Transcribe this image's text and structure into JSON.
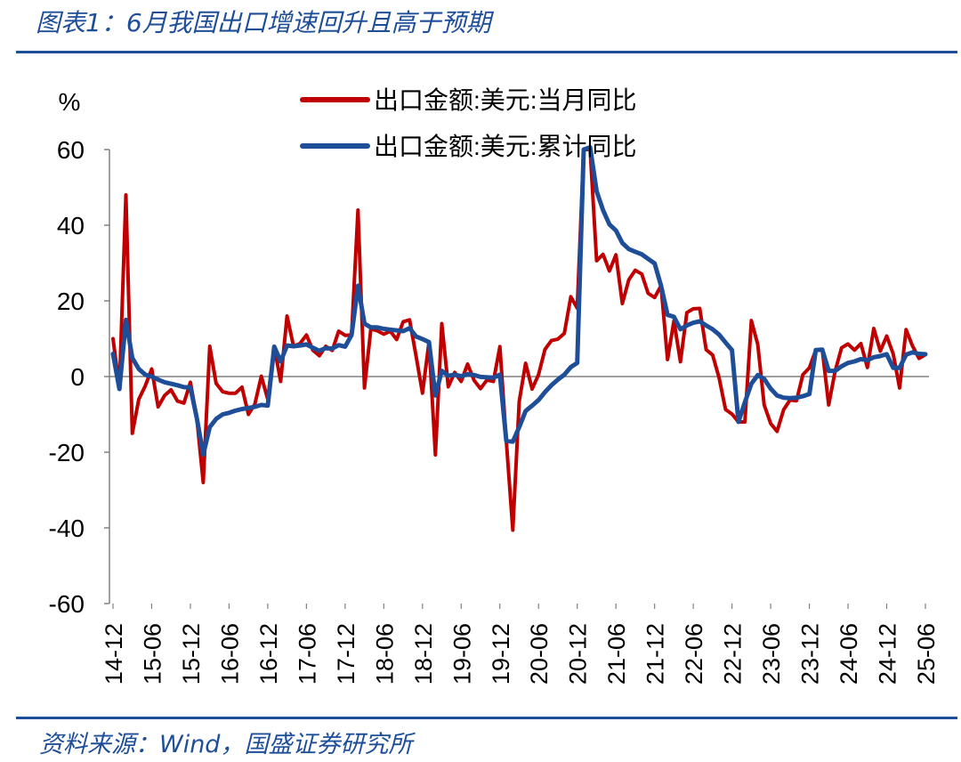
{
  "header": {
    "title": "图表1：6月我国出口增速回升且高于预期"
  },
  "footer": {
    "source": "资料来源：Wind，国盛证券研究所"
  },
  "chart_data": {
    "type": "line",
    "title": "图表1：6月我国出口增速回升且高于预期",
    "ylabel": "%",
    "ylim": [
      -60,
      60
    ],
    "yticks": [
      60,
      40,
      20,
      0,
      -20,
      -40,
      -60
    ],
    "ytick_labels": [
      "60",
      "40",
      "20",
      "0",
      "-20",
      "-40",
      "-60"
    ],
    "xlim": [
      "2014-12",
      "2025-06"
    ],
    "xtick_labels": [
      "14-12",
      "15-06",
      "15-12",
      "16-06",
      "16-12",
      "17-06",
      "17-12",
      "18-06",
      "18-12",
      "19-06",
      "19-12",
      "20-06",
      "20-12",
      "21-06",
      "21-12",
      "22-06",
      "22-12",
      "23-06",
      "23-12",
      "24-06",
      "24-12",
      "25-06"
    ],
    "grid": false,
    "legend_position": "top-center",
    "series": [
      {
        "name": "出口金额:美元:当月同比",
        "color": "#c00000",
        "points": [
          [
            "2014-12",
            10
          ],
          [
            "2015-01",
            -3
          ],
          [
            "2015-02",
            48
          ],
          [
            "2015-03",
            -15
          ],
          [
            "2015-04",
            -6
          ],
          [
            "2015-05",
            -2.5
          ],
          [
            "2015-06",
            2
          ],
          [
            "2015-07",
            -8
          ],
          [
            "2015-08",
            -5
          ],
          [
            "2015-09",
            -3.5
          ],
          [
            "2015-10",
            -6.5
          ],
          [
            "2015-11",
            -7
          ],
          [
            "2015-12",
            -1.5
          ],
          [
            "2016-01",
            -11
          ],
          [
            "2016-02",
            -28
          ],
          [
            "2016-03",
            8
          ],
          [
            "2016-04",
            -1.8
          ],
          [
            "2016-05",
            -4
          ],
          [
            "2016-06",
            -4.4
          ],
          [
            "2016-07",
            -4.4
          ],
          [
            "2016-08",
            -2.8
          ],
          [
            "2016-09",
            -10
          ],
          [
            "2016-10",
            -7.3
          ],
          [
            "2016-11",
            0.1
          ],
          [
            "2016-12",
            -6
          ],
          [
            "2017-01",
            7.9
          ],
          [
            "2017-02",
            -1.3
          ],
          [
            "2017-03",
            16
          ],
          [
            "2017-04",
            8
          ],
          [
            "2017-05",
            8.7
          ],
          [
            "2017-06",
            11
          ],
          [
            "2017-07",
            7
          ],
          [
            "2017-08",
            5.5
          ],
          [
            "2017-09",
            8
          ],
          [
            "2017-10",
            6.9
          ],
          [
            "2017-11",
            12
          ],
          [
            "2017-12",
            10.9
          ],
          [
            "2018-01",
            11
          ],
          [
            "2018-02",
            44
          ],
          [
            "2018-03",
            -3
          ],
          [
            "2018-04",
            12.6
          ],
          [
            "2018-05",
            12.1
          ],
          [
            "2018-06",
            11.2
          ],
          [
            "2018-07",
            12
          ],
          [
            "2018-08",
            9.8
          ],
          [
            "2018-09",
            14.5
          ],
          [
            "2018-10",
            15
          ],
          [
            "2018-11",
            5.4
          ],
          [
            "2018-12",
            -4.4
          ],
          [
            "2019-01",
            9.1
          ],
          [
            "2019-02",
            -20.7
          ],
          [
            "2019-03",
            14
          ],
          [
            "2019-04",
            -2.7
          ],
          [
            "2019-05",
            1.1
          ],
          [
            "2019-06",
            -1.3
          ],
          [
            "2019-07",
            3.3
          ],
          [
            "2019-08",
            -1
          ],
          [
            "2019-09",
            -3.2
          ],
          [
            "2019-10",
            -0.9
          ],
          [
            "2019-11",
            -1.3
          ],
          [
            "2019-12",
            7.9
          ],
          [
            "2020-01",
            -17
          ],
          [
            "2020-02",
            -40.6
          ],
          [
            "2020-03",
            -6.6
          ],
          [
            "2020-04",
            3.5
          ],
          [
            "2020-05",
            -3.3
          ],
          [
            "2020-06",
            0.5
          ],
          [
            "2020-07",
            7.2
          ],
          [
            "2020-08",
            9.5
          ],
          [
            "2020-09",
            9.9
          ],
          [
            "2020-10",
            11.4
          ],
          [
            "2020-11",
            21.1
          ],
          [
            "2020-12",
            18.1
          ],
          [
            "2021-01",
            60
          ],
          [
            "2021-02",
            60
          ],
          [
            "2021-03",
            30.6
          ],
          [
            "2021-04",
            32.3
          ],
          [
            "2021-05",
            27.9
          ],
          [
            "2021-06",
            32.2
          ],
          [
            "2021-07",
            19.3
          ],
          [
            "2021-08",
            25.6
          ],
          [
            "2021-09",
            28.1
          ],
          [
            "2021-10",
            27.1
          ],
          [
            "2021-11",
            22
          ],
          [
            "2021-12",
            20.9
          ],
          [
            "2022-01",
            24
          ],
          [
            "2022-02",
            4.5
          ],
          [
            "2022-03",
            14.7
          ],
          [
            "2022-04",
            3.9
          ],
          [
            "2022-05",
            16.9
          ],
          [
            "2022-06",
            17.9
          ],
          [
            "2022-07",
            18
          ],
          [
            "2022-08",
            7.1
          ],
          [
            "2022-09",
            5.7
          ],
          [
            "2022-10",
            -0.3
          ],
          [
            "2022-11",
            -8.7
          ],
          [
            "2022-12",
            -9.9
          ],
          [
            "2023-01",
            -12
          ],
          [
            "2023-02",
            -12
          ],
          [
            "2023-03",
            14.8
          ],
          [
            "2023-04",
            8.5
          ],
          [
            "2023-05",
            -7.5
          ],
          [
            "2023-06",
            -12.4
          ],
          [
            "2023-07",
            -14.5
          ],
          [
            "2023-08",
            -8.8
          ],
          [
            "2023-09",
            -6.2
          ],
          [
            "2023-10",
            -6.4
          ],
          [
            "2023-11",
            0.5
          ],
          [
            "2023-12",
            2.3
          ],
          [
            "2024-01",
            7
          ],
          [
            "2024-02",
            7.1
          ],
          [
            "2024-03",
            -7.5
          ],
          [
            "2024-04",
            1.5
          ],
          [
            "2024-05",
            7.6
          ],
          [
            "2024-06",
            8.6
          ],
          [
            "2024-07",
            7
          ],
          [
            "2024-08",
            8.7
          ],
          [
            "2024-09",
            2.4
          ],
          [
            "2024-10",
            12.7
          ],
          [
            "2024-11",
            6.7
          ],
          [
            "2024-12",
            10.7
          ],
          [
            "2025-01",
            6
          ],
          [
            "2025-02",
            -3
          ],
          [
            "2025-03",
            12.4
          ],
          [
            "2025-04",
            8.1
          ],
          [
            "2025-05",
            4.8
          ],
          [
            "2025-06",
            5.8
          ]
        ]
      },
      {
        "name": "出口金额:美元:累计同比",
        "color": "#1f4e99",
        "points": [
          [
            "2014-12",
            6
          ],
          [
            "2015-01",
            -3.3
          ],
          [
            "2015-02",
            15
          ],
          [
            "2015-03",
            4.9
          ],
          [
            "2015-04",
            2
          ],
          [
            "2015-05",
            0.5
          ],
          [
            "2015-06",
            0
          ],
          [
            "2015-07",
            -0.8
          ],
          [
            "2015-08",
            -1.5
          ],
          [
            "2015-09",
            -1.9
          ],
          [
            "2015-10",
            -2.3
          ],
          [
            "2015-11",
            -2.8
          ],
          [
            "2015-12",
            -2.9
          ],
          [
            "2016-01",
            -11
          ],
          [
            "2016-02",
            -20.6
          ],
          [
            "2016-03",
            -13.4
          ],
          [
            "2016-04",
            -11.2
          ],
          [
            "2016-05",
            -10
          ],
          [
            "2016-06",
            -9.6
          ],
          [
            "2016-07",
            -9
          ],
          [
            "2016-08",
            -8.6
          ],
          [
            "2016-09",
            -8.3
          ],
          [
            "2016-10",
            -8
          ],
          [
            "2016-11",
            -7.5
          ],
          [
            "2016-12",
            -7.7
          ],
          [
            "2017-01",
            7.9
          ],
          [
            "2017-02",
            4
          ],
          [
            "2017-03",
            8.2
          ],
          [
            "2017-04",
            8
          ],
          [
            "2017-05",
            8.2
          ],
          [
            "2017-06",
            8.5
          ],
          [
            "2017-07",
            7.6
          ],
          [
            "2017-08",
            6.8
          ],
          [
            "2017-09",
            7.5
          ],
          [
            "2017-10",
            7.4
          ],
          [
            "2017-11",
            8.3
          ],
          [
            "2017-12",
            7.9
          ],
          [
            "2018-01",
            11
          ],
          [
            "2018-02",
            24
          ],
          [
            "2018-03",
            14
          ],
          [
            "2018-04",
            13
          ],
          [
            "2018-05",
            13
          ],
          [
            "2018-06",
            12.6
          ],
          [
            "2018-07",
            12.4
          ],
          [
            "2018-08",
            12.2
          ],
          [
            "2018-09",
            12
          ],
          [
            "2018-10",
            12.8
          ],
          [
            "2018-11",
            10.6
          ],
          [
            "2018-12",
            9.9
          ],
          [
            "2019-01",
            9.1
          ],
          [
            "2019-02",
            -5
          ],
          [
            "2019-03",
            1.5
          ],
          [
            "2019-04",
            0.2
          ],
          [
            "2019-05",
            0.5
          ],
          [
            "2019-06",
            0.1
          ],
          [
            "2019-07",
            0.6
          ],
          [
            "2019-08",
            0.4
          ],
          [
            "2019-09",
            -0.1
          ],
          [
            "2019-10",
            -0.2
          ],
          [
            "2019-11",
            -0.3
          ],
          [
            "2019-12",
            0.5
          ],
          [
            "2020-01",
            -17
          ],
          [
            "2020-02",
            -17.2
          ],
          [
            "2020-03",
            -13.4
          ],
          [
            "2020-04",
            -9.1
          ],
          [
            "2020-05",
            -7.7
          ],
          [
            "2020-06",
            -6.2
          ],
          [
            "2020-07",
            -4.1
          ],
          [
            "2020-08",
            -2.3
          ],
          [
            "2020-09",
            -0.8
          ],
          [
            "2020-10",
            0.5
          ],
          [
            "2020-11",
            2.5
          ],
          [
            "2020-12",
            3.6
          ],
          [
            "2021-01",
            60
          ],
          [
            "2021-02",
            60.6
          ],
          [
            "2021-03",
            49
          ],
          [
            "2021-04",
            44
          ],
          [
            "2021-05",
            40.2
          ],
          [
            "2021-06",
            38.6
          ],
          [
            "2021-07",
            35.3
          ],
          [
            "2021-08",
            33.7
          ],
          [
            "2021-09",
            33
          ],
          [
            "2021-10",
            32.3
          ],
          [
            "2021-11",
            31.1
          ],
          [
            "2021-12",
            29.9
          ],
          [
            "2022-01",
            24
          ],
          [
            "2022-02",
            16.3
          ],
          [
            "2022-03",
            15.8
          ],
          [
            "2022-04",
            12.5
          ],
          [
            "2022-05",
            13.5
          ],
          [
            "2022-06",
            14.2
          ],
          [
            "2022-07",
            14.6
          ],
          [
            "2022-08",
            13.5
          ],
          [
            "2022-09",
            12.5
          ],
          [
            "2022-10",
            11.1
          ],
          [
            "2022-11",
            9
          ],
          [
            "2022-12",
            7
          ],
          [
            "2023-01",
            -12
          ],
          [
            "2023-02",
            -6.8
          ],
          [
            "2023-03",
            -1.9
          ],
          [
            "2023-04",
            0.4
          ],
          [
            "2023-05",
            -0.6
          ],
          [
            "2023-06",
            -3.2
          ],
          [
            "2023-07",
            -5
          ],
          [
            "2023-08",
            -5.6
          ],
          [
            "2023-09",
            -5.7
          ],
          [
            "2023-10",
            -5.6
          ],
          [
            "2023-11",
            -5.2
          ],
          [
            "2023-12",
            -4.6
          ],
          [
            "2024-01",
            7
          ],
          [
            "2024-02",
            7.1
          ],
          [
            "2024-03",
            1.5
          ],
          [
            "2024-04",
            1.5
          ],
          [
            "2024-05",
            2.7
          ],
          [
            "2024-06",
            3.6
          ],
          [
            "2024-07",
            4
          ],
          [
            "2024-08",
            4.6
          ],
          [
            "2024-09",
            4.3
          ],
          [
            "2024-10",
            5.1
          ],
          [
            "2024-11",
            5.4
          ],
          [
            "2024-12",
            5.9
          ],
          [
            "2025-01",
            2.3
          ],
          [
            "2025-02",
            2.3
          ],
          [
            "2025-03",
            5.8
          ],
          [
            "2025-04",
            6.4
          ],
          [
            "2025-05",
            6
          ],
          [
            "2025-06",
            5.9
          ]
        ]
      }
    ]
  }
}
